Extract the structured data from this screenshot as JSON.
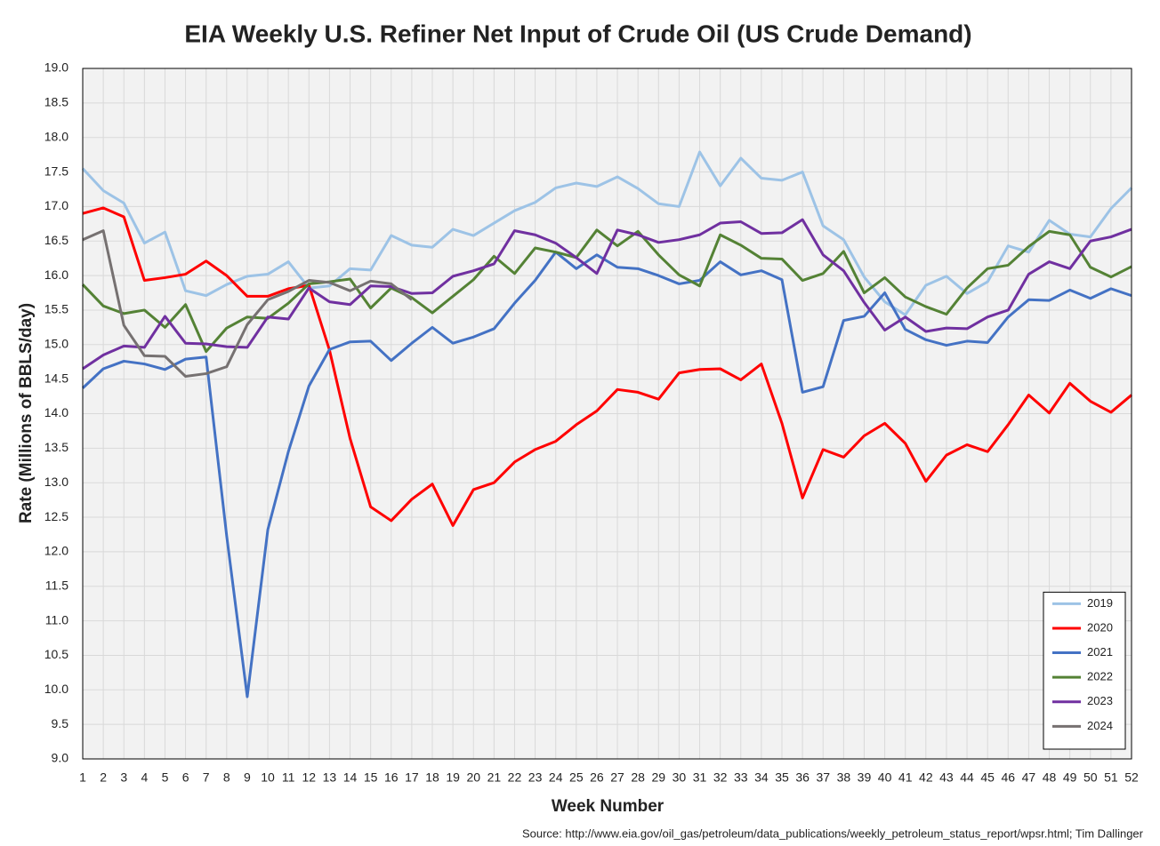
{
  "chart_data": {
    "type": "line",
    "title": "EIA Weekly U.S. Refiner Net Input of Crude Oil (US Crude Demand)",
    "x_label": "Week Number",
    "y_label": "Rate (Millions of BBLS/day)",
    "source": "Source: http://www.eia.gov/oil_gas/petroleum/data_publications/weekly_petroleum_status_report/wpsr.html; Tim Dallinger",
    "x": [
      1,
      2,
      3,
      4,
      5,
      6,
      7,
      8,
      9,
      10,
      11,
      12,
      13,
      14,
      15,
      16,
      17,
      18,
      19,
      20,
      21,
      22,
      23,
      24,
      25,
      26,
      27,
      28,
      29,
      30,
      31,
      32,
      33,
      34,
      35,
      36,
      37,
      38,
      39,
      40,
      41,
      42,
      43,
      44,
      45,
      46,
      47,
      48,
      49,
      50,
      51,
      52
    ],
    "xlim": [
      1,
      52
    ],
    "xticks": [
      1,
      2,
      3,
      4,
      5,
      6,
      7,
      8,
      9,
      10,
      11,
      12,
      13,
      14,
      15,
      16,
      17,
      18,
      19,
      20,
      21,
      22,
      23,
      24,
      25,
      26,
      27,
      28,
      29,
      30,
      31,
      32,
      33,
      34,
      35,
      36,
      37,
      38,
      39,
      40,
      41,
      42,
      43,
      44,
      45,
      46,
      47,
      48,
      49,
      50,
      51,
      52
    ],
    "ylim": [
      9,
      19
    ],
    "yticks": [
      {
        "value": 9,
        "label": "9.0"
      },
      9.5,
      {
        "value": 10,
        "label": "10.0"
      },
      10.5,
      {
        "value": 11,
        "label": "11.0"
      },
      11.5,
      {
        "value": 12,
        "label": "12.0"
      },
      12.5,
      {
        "value": 13,
        "label": "13.0"
      },
      13.5,
      {
        "value": 14,
        "label": "14.0"
      },
      14.5,
      {
        "value": 15,
        "label": "15.0"
      },
      15.5,
      {
        "value": 16,
        "label": "16.0"
      },
      16.5,
      {
        "value": 17,
        "label": "17.0"
      },
      17.5,
      {
        "value": 18,
        "label": "18.0"
      },
      18.5,
      {
        "value": 19,
        "label": "19.0"
      }
    ],
    "grid": true,
    "legend": "bottom-right",
    "series": [
      {
        "name": "2019",
        "color": "#9dc3e6",
        "values": [
          17.55,
          17.23,
          17.05,
          16.47,
          16.63,
          15.78,
          15.71,
          15.87,
          15.99,
          16.02,
          16.2,
          15.82,
          15.85,
          16.1,
          16.08,
          16.58,
          16.44,
          16.41,
          16.67,
          16.58,
          16.76,
          16.94,
          17.06,
          17.27,
          17.34,
          17.29,
          17.43,
          17.26,
          17.04,
          17.0,
          17.79,
          17.3,
          17.7,
          17.41,
          17.38,
          17.5,
          16.72,
          16.52,
          15.98,
          15.62,
          15.43,
          15.86,
          15.99,
          15.74,
          15.91,
          16.43,
          16.34,
          16.8,
          16.6,
          16.56,
          16.97,
          17.27
        ]
      },
      {
        "name": "2020",
        "color": "#ff0000",
        "values": [
          16.9,
          16.98,
          16.85,
          15.93,
          15.97,
          16.02,
          16.21,
          16.0,
          15.7,
          15.7,
          15.81,
          15.86,
          14.92,
          13.64,
          12.65,
          12.45,
          12.76,
          12.98,
          12.38,
          12.9,
          13.0,
          13.3,
          13.48,
          13.6,
          13.84,
          14.04,
          14.35,
          14.31,
          14.21,
          14.59,
          14.64,
          14.65,
          14.49,
          14.72,
          13.86,
          12.78,
          13.48,
          13.37,
          13.68,
          13.86,
          13.57,
          13.02,
          13.4,
          13.55,
          13.45,
          13.84,
          14.27,
          14.01,
          14.44,
          14.18,
          14.02,
          14.27
        ]
      },
      {
        "name": "2021",
        "color": "#4472c4",
        "values": [
          14.37,
          14.65,
          14.76,
          14.72,
          14.64,
          14.79,
          14.82,
          12.23,
          9.9,
          12.32,
          13.45,
          14.4,
          14.93,
          15.04,
          15.05,
          14.77,
          15.02,
          15.25,
          15.02,
          15.11,
          15.23,
          15.6,
          15.93,
          16.34,
          16.1,
          16.3,
          16.12,
          16.1,
          16.0,
          15.88,
          15.93,
          16.2,
          16.01,
          16.07,
          15.94,
          14.31,
          14.39,
          15.35,
          15.41,
          15.75,
          15.22,
          15.07,
          14.99,
          15.05,
          15.03,
          15.4,
          15.65,
          15.64,
          15.79,
          15.67,
          15.81,
          15.71
        ]
      },
      {
        "name": "2022",
        "color": "#548235",
        "values": [
          15.87,
          15.56,
          15.45,
          15.5,
          15.25,
          15.58,
          14.9,
          15.24,
          15.4,
          15.38,
          15.6,
          15.88,
          15.91,
          15.95,
          15.53,
          15.82,
          15.68,
          15.46,
          15.7,
          15.94,
          16.28,
          16.03,
          16.4,
          16.34,
          16.26,
          16.66,
          16.43,
          16.64,
          16.3,
          16.01,
          15.85,
          16.59,
          16.44,
          16.25,
          16.24,
          15.93,
          16.03,
          16.35,
          15.75,
          15.97,
          15.69,
          15.55,
          15.44,
          15.82,
          16.1,
          16.15,
          16.42,
          16.64,
          16.59,
          16.12,
          15.98,
          16.13
        ]
      },
      {
        "name": "2023",
        "color": "#7030a0",
        "values": [
          14.65,
          14.85,
          14.98,
          14.96,
          15.41,
          15.02,
          15.01,
          14.97,
          14.96,
          15.4,
          15.37,
          15.82,
          15.62,
          15.58,
          15.85,
          15.84,
          15.74,
          15.75,
          15.99,
          16.07,
          16.17,
          16.65,
          16.59,
          16.47,
          16.26,
          16.03,
          16.66,
          16.59,
          16.48,
          16.52,
          16.59,
          16.76,
          16.78,
          16.61,
          16.62,
          16.81,
          16.3,
          16.07,
          15.61,
          15.21,
          15.4,
          15.19,
          15.24,
          15.23,
          15.4,
          15.5,
          16.02,
          16.2,
          16.1,
          16.5,
          16.56,
          16.67
        ]
      },
      {
        "name": "2024",
        "color": "#767171",
        "values": [
          16.52,
          16.65,
          15.28,
          14.84,
          14.83,
          14.54,
          14.58,
          14.68,
          15.29,
          15.65,
          15.77,
          15.93,
          15.9,
          15.78,
          15.92,
          15.88,
          15.65,
          null,
          null,
          null,
          null,
          null,
          null,
          null,
          null,
          null,
          null,
          null,
          null,
          null,
          null,
          null,
          null,
          null,
          null,
          null,
          null,
          null,
          null,
          null,
          null,
          null,
          null,
          null,
          null,
          null,
          null,
          null,
          null,
          null,
          null,
          null
        ]
      }
    ]
  }
}
